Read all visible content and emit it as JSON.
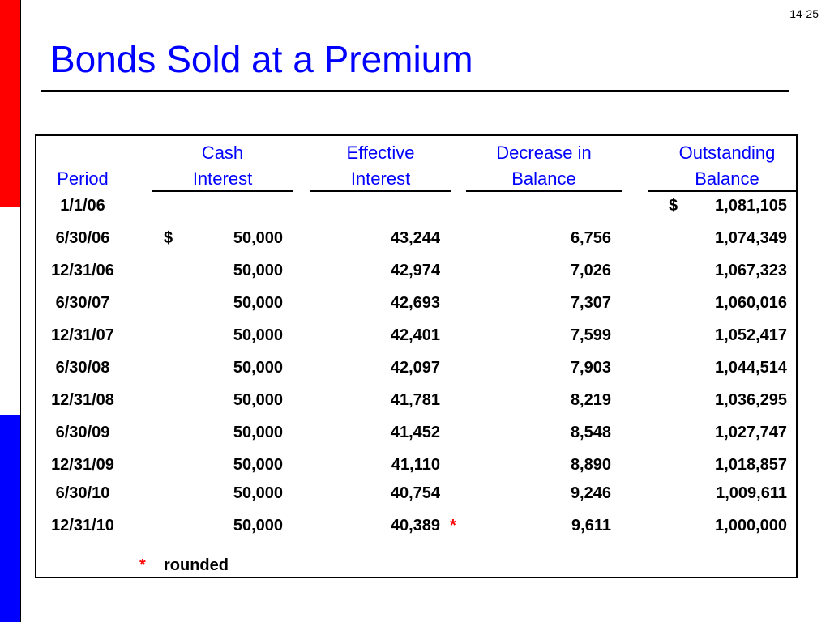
{
  "slide_number": "14-25",
  "title": "Bonds Sold at a Premium",
  "headers": {
    "period": [
      "",
      "Period"
    ],
    "cash": [
      "Cash",
      "Interest"
    ],
    "effective": [
      "Effective",
      "Interest"
    ],
    "decrease": [
      "Decrease in",
      "Balance"
    ],
    "outstanding": [
      "Outstanding",
      "Balance"
    ]
  },
  "rows": [
    {
      "period": "1/1/06",
      "cash": "",
      "effective": "",
      "decrease": "",
      "outstanding": "1,081,105",
      "cash_dollar": "",
      "out_dollar": "$"
    },
    {
      "period": "6/30/06",
      "cash": "50,000",
      "effective": "43,244",
      "decrease": "6,756",
      "outstanding": "1,074,349",
      "cash_dollar": "$",
      "out_dollar": ""
    },
    {
      "period": "12/31/06",
      "cash": "50,000",
      "effective": "42,974",
      "decrease": "7,026",
      "outstanding": "1,067,323",
      "cash_dollar": "",
      "out_dollar": ""
    },
    {
      "period": "6/30/07",
      "cash": "50,000",
      "effective": "42,693",
      "decrease": "7,307",
      "outstanding": "1,060,016",
      "cash_dollar": "",
      "out_dollar": ""
    },
    {
      "period": "12/31/07",
      "cash": "50,000",
      "effective": "42,401",
      "decrease": "7,599",
      "outstanding": "1,052,417",
      "cash_dollar": "",
      "out_dollar": ""
    },
    {
      "period": "6/30/08",
      "cash": "50,000",
      "effective": "42,097",
      "decrease": "7,903",
      "outstanding": "1,044,514",
      "cash_dollar": "",
      "out_dollar": ""
    },
    {
      "period": "12/31/08",
      "cash": "50,000",
      "effective": "41,781",
      "decrease": "8,219",
      "outstanding": "1,036,295",
      "cash_dollar": "",
      "out_dollar": ""
    },
    {
      "period": "6/30/09",
      "cash": "50,000",
      "effective": "41,452",
      "decrease": "8,548",
      "outstanding": "1,027,747",
      "cash_dollar": "",
      "out_dollar": ""
    },
    {
      "period": "12/31/09",
      "cash": "50,000",
      "effective": "41,110",
      "decrease": "8,890",
      "outstanding": "1,018,857",
      "cash_dollar": "",
      "out_dollar": ""
    },
    {
      "period": "6/30/10",
      "cash": "50,000",
      "effective": "40,754",
      "decrease": "9,246",
      "outstanding": "1,009,611",
      "cash_dollar": "",
      "out_dollar": ""
    },
    {
      "period": "12/31/10",
      "cash": "50,000",
      "effective": "40,389",
      "decrease": "9,611",
      "outstanding": "1,000,000",
      "cash_dollar": "",
      "out_dollar": "",
      "mark": "*"
    }
  ],
  "footnote": {
    "mark": "*",
    "text": "rounded"
  },
  "colors": {
    "title": "#0000ff",
    "header": "#0000ff",
    "marker": "#ff0000"
  }
}
